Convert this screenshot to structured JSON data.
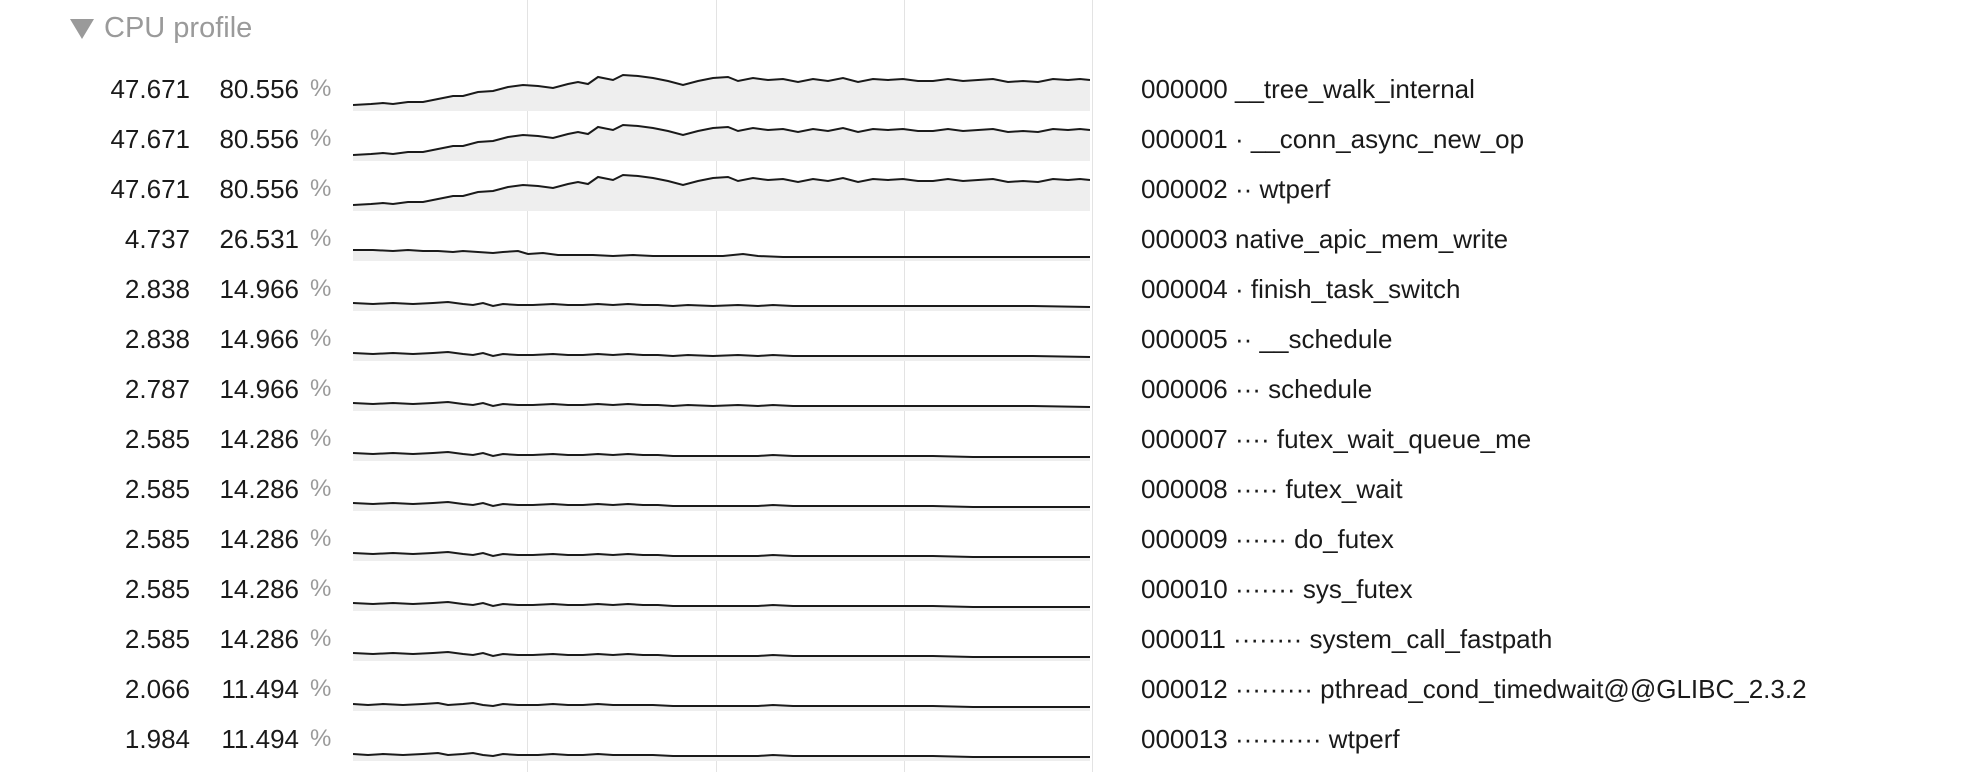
{
  "section": {
    "title": "CPU profile"
  },
  "rows": [
    {
      "value": "47.671",
      "max": "80.556",
      "unit": "%",
      "label": "000000 __tree_walk_internal"
    },
    {
      "value": "47.671",
      "max": "80.556",
      "unit": "%",
      "label": "000001 · __conn_async_new_op"
    },
    {
      "value": "47.671",
      "max": "80.556",
      "unit": "%",
      "label": "000002 ·· wtperf"
    },
    {
      "value": "4.737",
      "max": "26.531",
      "unit": "%",
      "label": "000003 native_apic_mem_write"
    },
    {
      "value": "2.838",
      "max": "14.966",
      "unit": "%",
      "label": "000004 · finish_task_switch"
    },
    {
      "value": "2.838",
      "max": "14.966",
      "unit": "%",
      "label": "000005 ·· __schedule"
    },
    {
      "value": "2.787",
      "max": "14.966",
      "unit": "%",
      "label": "000006 ··· schedule"
    },
    {
      "value": "2.585",
      "max": "14.286",
      "unit": "%",
      "label": "000007 ···· futex_wait_queue_me"
    },
    {
      "value": "2.585",
      "max": "14.286",
      "unit": "%",
      "label": "000008 ····· futex_wait"
    },
    {
      "value": "2.585",
      "max": "14.286",
      "unit": "%",
      "label": "000009 ······ do_futex"
    },
    {
      "value": "2.585",
      "max": "14.286",
      "unit": "%",
      "label": "000010 ······· sys_futex"
    },
    {
      "value": "2.585",
      "max": "14.286",
      "unit": "%",
      "label": "000011 ········ system_call_fastpath"
    },
    {
      "value": "2.066",
      "max": "11.494",
      "unit": "%",
      "label": "000012 ········· pthread_cond_timedwait@@GLIBC_2.3.2"
    },
    {
      "value": "1.984",
      "max": "11.494",
      "unit": "%",
      "label": "000013 ·········· wtperf"
    }
  ]
}
